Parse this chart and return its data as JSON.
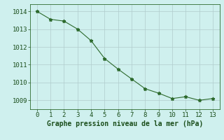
{
  "x": [
    0,
    1,
    2,
    3,
    4,
    5,
    6,
    7,
    8,
    9,
    10,
    11,
    12,
    13
  ],
  "y": [
    1014.0,
    1013.55,
    1013.45,
    1013.0,
    1012.35,
    1011.35,
    1010.75,
    1010.2,
    1009.65,
    1009.4,
    1009.1,
    1009.2,
    1009.0,
    1009.1
  ],
  "line_color": "#2d6a2d",
  "marker": "*",
  "marker_size": 3.5,
  "background_color": "#cff0ee",
  "grid_color": "#b0cccc",
  "xlabel": "Graphe pression niveau de la mer (hPa)",
  "xlabel_fontsize": 7,
  "xlabel_color": "#1a4d1a",
  "xlabel_bold": true,
  "ytick_labels": [
    1009,
    1010,
    1011,
    1012,
    1013,
    1014
  ],
  "ylim": [
    1008.5,
    1014.4
  ],
  "xlim": [
    -0.5,
    13.5
  ],
  "xtick_labels": [
    0,
    1,
    2,
    3,
    4,
    5,
    6,
    7,
    8,
    9,
    10,
    11,
    12,
    13
  ],
  "tick_color": "#1a4d1a",
  "tick_fontsize": 6.5,
  "spine_color": "#2d6a2d"
}
